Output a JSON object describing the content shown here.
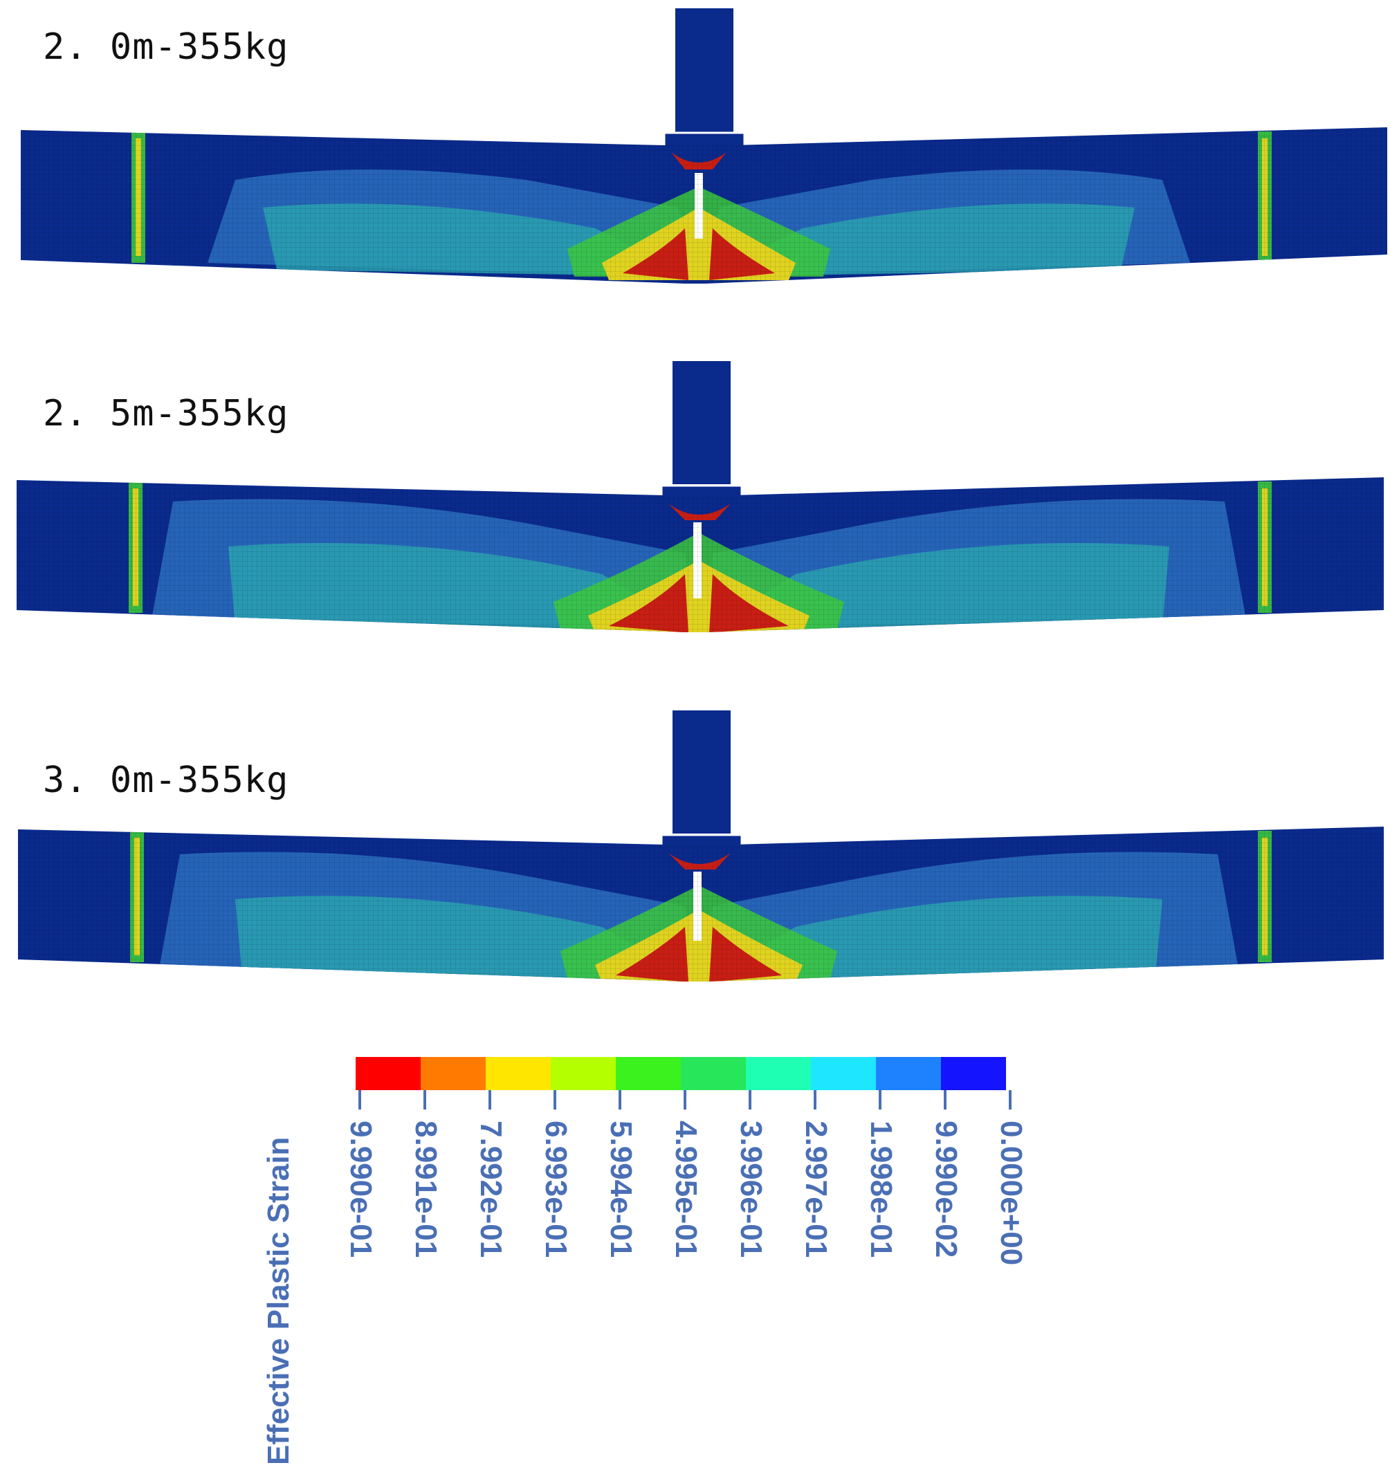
{
  "panels": [
    {
      "label": "2. 0m-355kg"
    },
    {
      "label": "2. 5m-355kg"
    },
    {
      "label": "3. 0m-355kg"
    }
  ],
  "legend": {
    "title": "Effective Plastic Strain",
    "segment_colors": [
      "#ff0000",
      "#ff7a00",
      "#ffe600",
      "#b4ff00",
      "#3cf21e",
      "#28e65a",
      "#1effb4",
      "#1ee6ff",
      "#1e82ff",
      "#1414ff"
    ],
    "tick_labels": [
      "9.990e-01",
      "8.991e-01",
      "7.992e-01",
      "6.993e-01",
      "5.994e-01",
      "4.995e-01",
      "3.996e-01",
      "2.997e-01",
      "1.998e-01",
      "9.990e-02",
      "0.000e+00"
    ]
  },
  "colors": {
    "background_blue": "#0a2a8c",
    "low_strain": "#2c6fc0",
    "mid_strain": "#2aa6b0",
    "high_strain": "#e0d320",
    "max_strain": "#c81e14"
  }
}
